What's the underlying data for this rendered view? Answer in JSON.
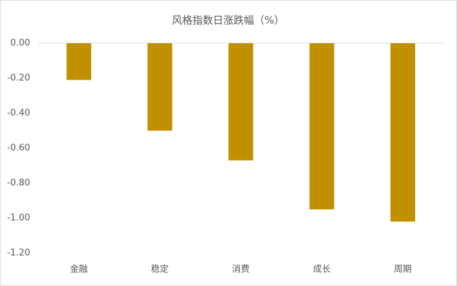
{
  "chart_data": {
    "type": "bar",
    "title": "风格指数日涨跌幅（%）",
    "categories": [
      "金融",
      "稳定",
      "消费",
      "成长",
      "周期"
    ],
    "values": [
      -0.21,
      -0.5,
      -0.67,
      -0.95,
      -1.02
    ],
    "color": "#c09000",
    "ylim": [
      -1.2,
      0
    ],
    "yticks": [
      {
        "value": 0,
        "label": "0.00"
      },
      {
        "value": -0.2,
        "label": "-0.20"
      },
      {
        "value": -0.4,
        "label": "-0.40"
      },
      {
        "value": -0.6,
        "label": "-0.60"
      },
      {
        "value": -0.8,
        "label": "-0.80"
      },
      {
        "value": -1.0,
        "label": "-1.00"
      },
      {
        "value": -1.2,
        "label": "-1.20"
      }
    ],
    "grid": false
  }
}
